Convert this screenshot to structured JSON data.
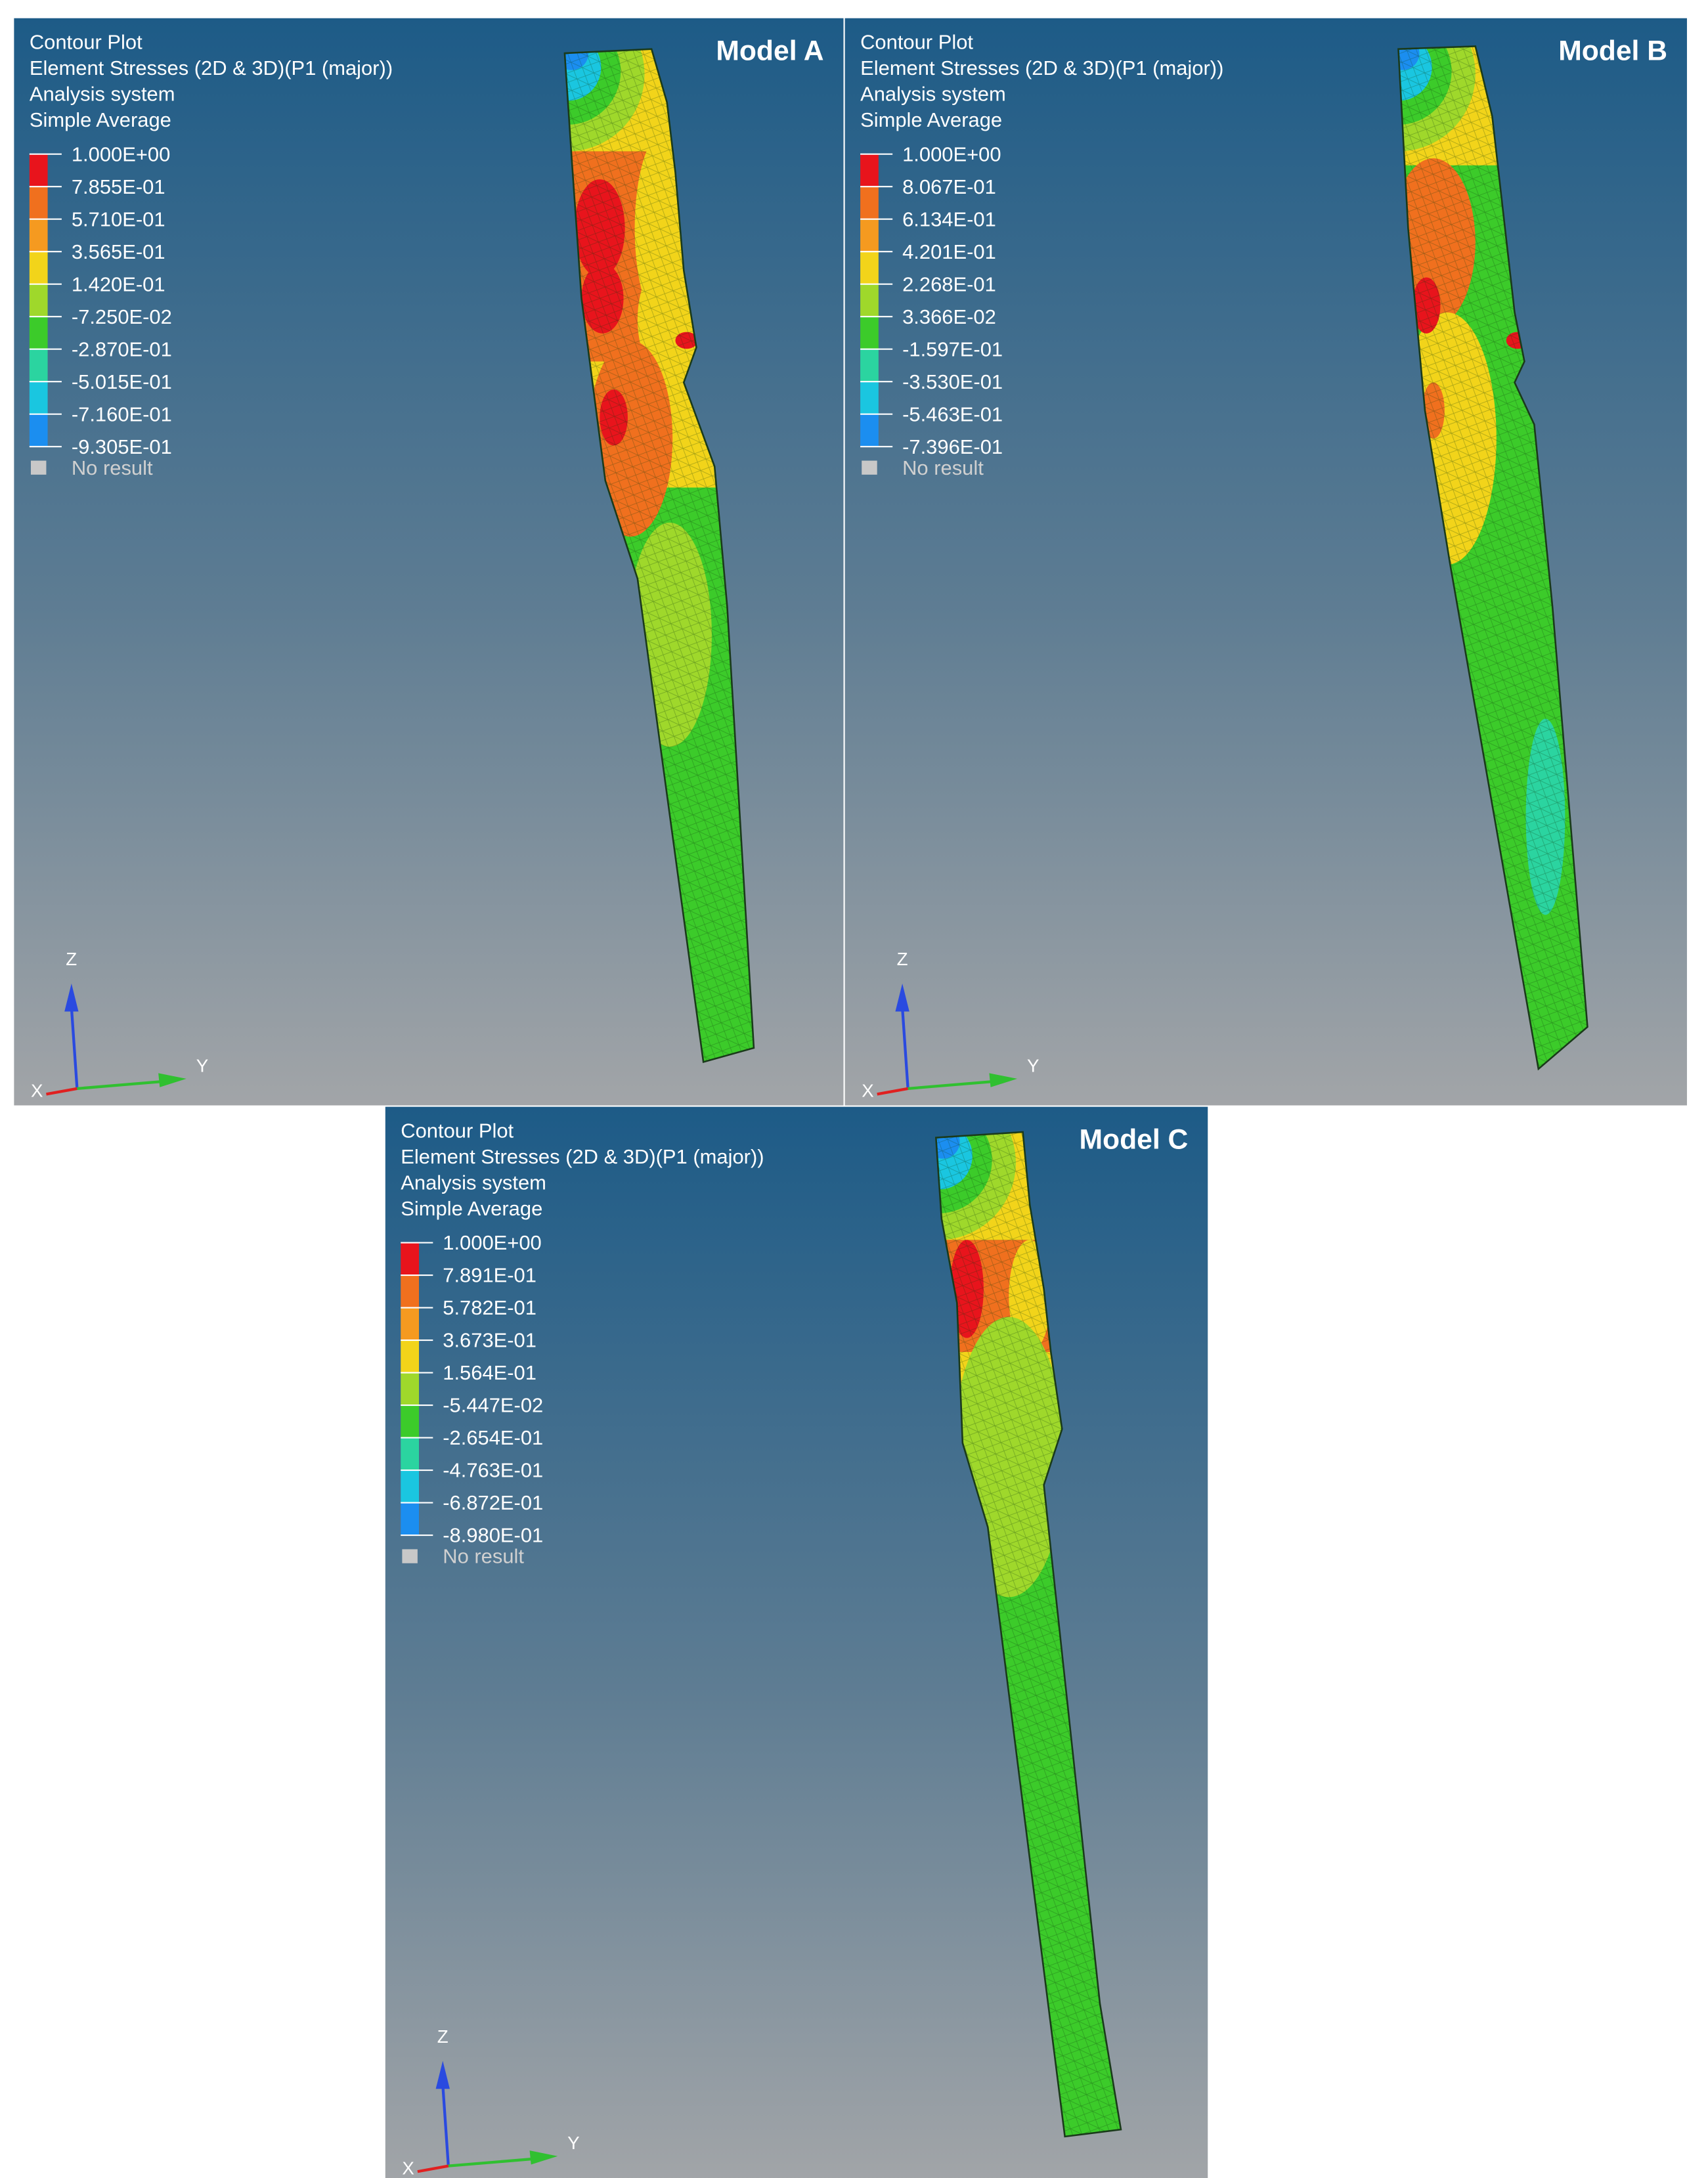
{
  "panels": [
    {
      "model": "Model A",
      "header": [
        "Contour Plot",
        "Element Stresses (2D & 3D)(P1 (major))",
        "Analysis system",
        "Simple Average"
      ],
      "legend": [
        "1.000E+00",
        "7.855E-01",
        "5.710E-01",
        "3.565E-01",
        "1.420E-01",
        "-7.250E-02",
        "-2.870E-01",
        "-5.015E-01",
        "-7.160E-01",
        "-9.305E-01"
      ],
      "no_result": "No result",
      "axes": [
        "Z",
        "Y",
        "X"
      ]
    },
    {
      "model": "Model B",
      "header": [
        "Contour Plot",
        "Element Stresses (2D & 3D)(P1 (major))",
        "Analysis system",
        "Simple Average"
      ],
      "legend": [
        "1.000E+00",
        "8.067E-01",
        "6.134E-01",
        "4.201E-01",
        "2.268E-01",
        "3.366E-02",
        "-1.597E-01",
        "-3.530E-01",
        "-5.463E-01",
        "-7.396E-01"
      ],
      "no_result": "No result",
      "axes": [
        "Z",
        "Y",
        "X"
      ]
    },
    {
      "model": "Model C",
      "header": [
        "Contour Plot",
        "Element Stresses (2D & 3D)(P1 (major))",
        "Analysis system",
        "Simple Average"
      ],
      "legend": [
        "1.000E+00",
        "7.891E-01",
        "5.782E-01",
        "3.673E-01",
        "1.564E-01",
        "-5.447E-02",
        "-2.654E-01",
        "-4.763E-01",
        "-6.872E-01",
        "-8.980E-01"
      ],
      "no_result": "No result",
      "axes": [
        "Z",
        "Y",
        "X"
      ]
    }
  ]
}
